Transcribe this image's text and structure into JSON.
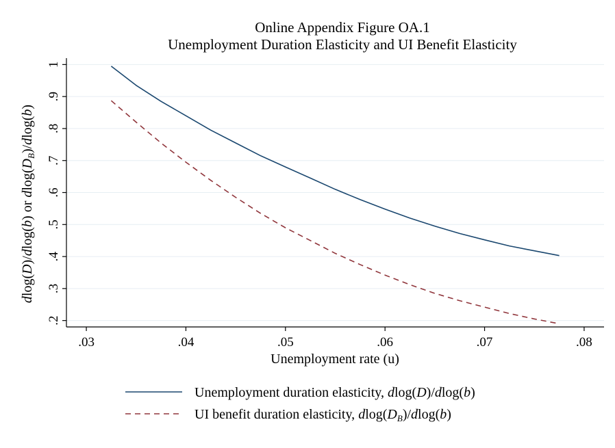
{
  "chart_data": {
    "type": "line",
    "title": "Online Appendix Figure OA.1",
    "subtitle": "Unemployment Duration Elasticity and UI Benefit Elasticity",
    "xlabel": "Unemployment rate (u)",
    "ylabel": "dlog(D)/dlog(b) or dlog(D_B)/dlog(b)",
    "xlim": [
      0.028,
      0.082
    ],
    "ylim": [
      0.18,
      1.02
    ],
    "xticks": [
      ".03",
      ".04",
      ".05",
      ".06",
      ".07",
      ".08"
    ],
    "xtick_values": [
      0.03,
      0.04,
      0.05,
      0.06,
      0.07,
      0.08
    ],
    "yticks": [
      ".2",
      ".3",
      ".4",
      ".5",
      ".6",
      ".7",
      ".8",
      ".9",
      "1"
    ],
    "ytick_values": [
      0.2,
      0.3,
      0.4,
      0.5,
      0.6,
      0.7,
      0.8,
      0.9,
      1.0
    ],
    "grid": true,
    "legend_position": "bottom",
    "series": [
      {
        "name": "Unemployment duration elasticity, dlog(D)/dlog(b)",
        "color": "#1a476f",
        "style": "solid",
        "x": [
          0.0325,
          0.035,
          0.0375,
          0.04,
          0.0425,
          0.045,
          0.0475,
          0.05,
          0.0525,
          0.055,
          0.0575,
          0.06,
          0.0625,
          0.065,
          0.0675,
          0.07,
          0.0725,
          0.075,
          0.0775
        ],
        "values": [
          0.995,
          0.935,
          0.885,
          0.84,
          0.795,
          0.755,
          0.715,
          0.68,
          0.645,
          0.61,
          0.578,
          0.548,
          0.52,
          0.495,
          0.472,
          0.452,
          0.433,
          0.418,
          0.403
        ]
      },
      {
        "name": "UI benefit duration elasticity, dlog(D_B)/dlog(b)",
        "color": "#90353b",
        "style": "dashed",
        "x": [
          0.0325,
          0.035,
          0.0375,
          0.04,
          0.0425,
          0.045,
          0.0475,
          0.05,
          0.0525,
          0.055,
          0.0575,
          0.06,
          0.0625,
          0.065,
          0.0675,
          0.07,
          0.0725,
          0.075,
          0.0775
        ],
        "values": [
          0.887,
          0.82,
          0.755,
          0.695,
          0.638,
          0.585,
          0.535,
          0.49,
          0.45,
          0.41,
          0.375,
          0.342,
          0.312,
          0.285,
          0.262,
          0.242,
          0.222,
          0.205,
          0.19
        ]
      }
    ]
  }
}
